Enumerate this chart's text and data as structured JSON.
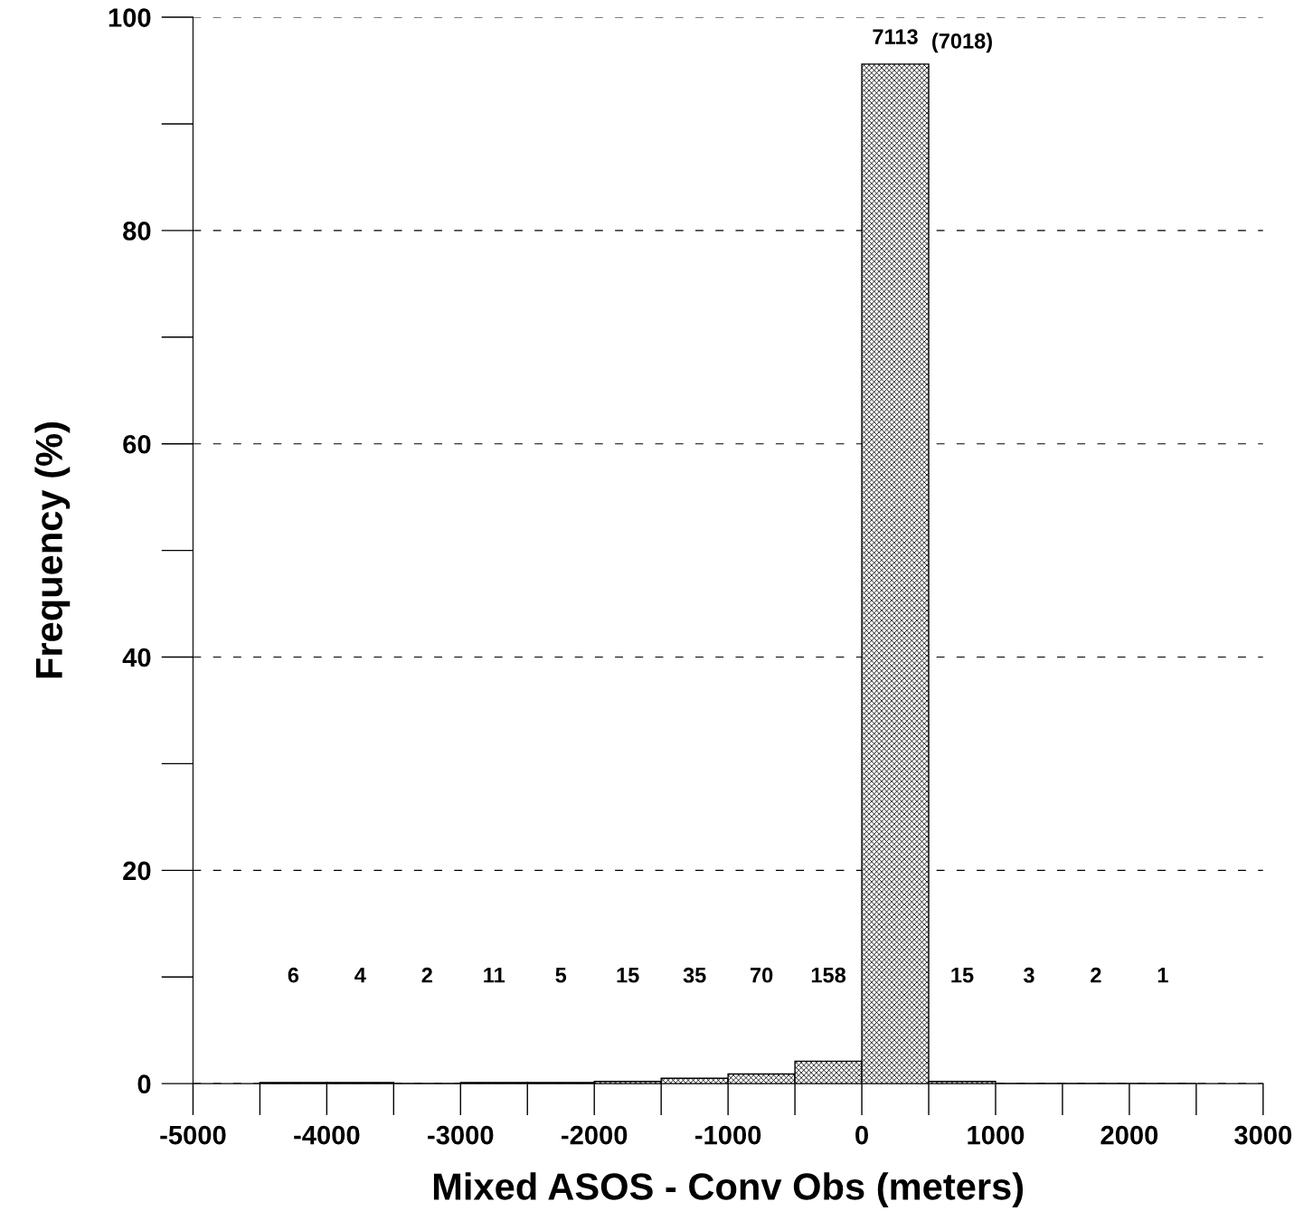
{
  "chart_data": {
    "type": "histogram",
    "xlabel": "Mixed ASOS - Conv Obs (meters)",
    "ylabel": "Frequency (%)",
    "bins": [
      -4500,
      -4000,
      -3500,
      -3000,
      -2500,
      -2000,
      -1500,
      -1000,
      -500,
      0,
      500,
      1000,
      1500,
      2000,
      2500
    ],
    "values": [
      0.1,
      0.1,
      0.0,
      0.1,
      0.1,
      0.2,
      0.5,
      0.9,
      2.1,
      95.6,
      0.2,
      0.0,
      0.0,
      0.0
    ],
    "color": "#000000",
    "annotations": [
      "6",
      "4",
      "2",
      "11",
      "5",
      "15",
      "35",
      "70",
      "158",
      "7113",
      "15",
      "3",
      "2",
      "1",
      "(7018)"
    ],
    "xlim": [
      -5000,
      3000
    ],
    "xticks": [
      -5000,
      -4000,
      -3000,
      -2000,
      -1000,
      0,
      1000,
      2000,
      3000
    ],
    "ylim": [
      0,
      100
    ],
    "yticks": [
      0,
      20,
      40,
      60,
      80,
      100
    ],
    "grid": "y"
  }
}
